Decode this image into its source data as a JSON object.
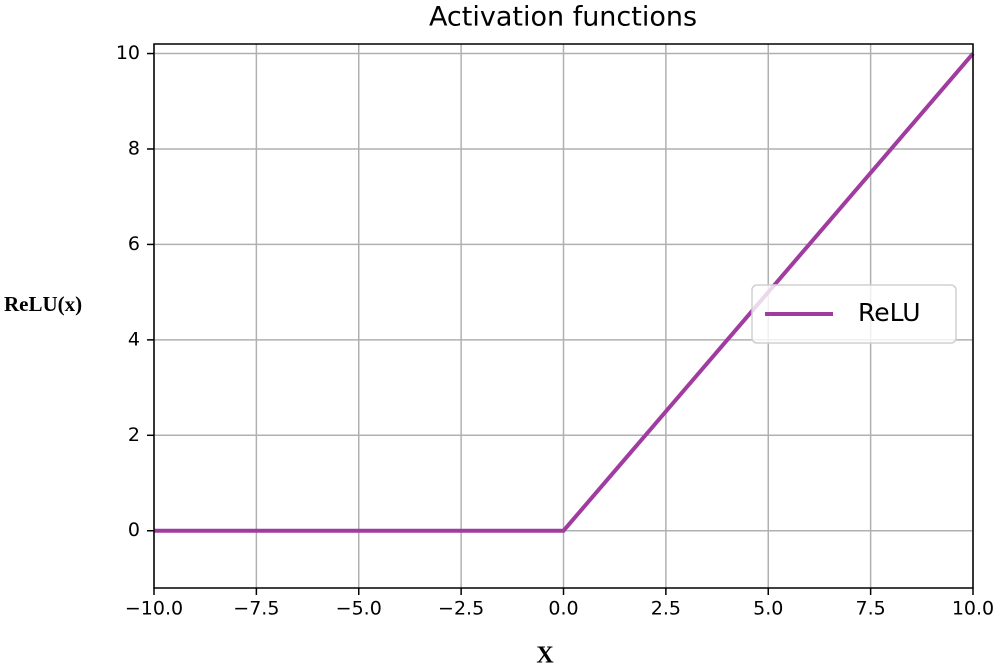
{
  "chart_data": {
    "type": "line",
    "title": "Activation functions",
    "x_label": "X",
    "y_label": "ReLU(x)",
    "x": [
      -10,
      0,
      10
    ],
    "series": [
      {
        "name": "ReLU",
        "color": "#a03ca0",
        "values": [
          0,
          0,
          10
        ]
      }
    ],
    "xlim": [
      -10,
      10
    ],
    "xticks": [
      {
        "value": -10,
        "label": "−10.0"
      },
      {
        "value": -7.5,
        "label": "−7.5"
      },
      {
        "value": -5,
        "label": "−5.0"
      },
      {
        "value": -2.5,
        "label": "−2.5"
      },
      {
        "value": 0,
        "label": "0.0"
      },
      2.5,
      {
        "value": 5,
        "label": "5.0"
      },
      7.5,
      {
        "value": 10,
        "label": "10.0"
      }
    ],
    "ylim": [
      -1.2,
      10.2
    ],
    "yticks": [
      0,
      2,
      4,
      6,
      8,
      10
    ],
    "grid": true,
    "legend": "center right"
  }
}
